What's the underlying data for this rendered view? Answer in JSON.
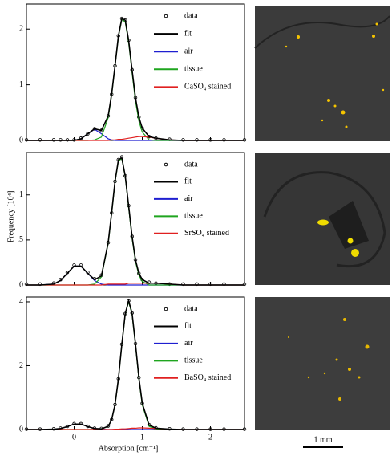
{
  "figure": {
    "y_label": "Frequency [10⁴]",
    "x_label": "Absorption [cm⁻¹]",
    "scale_bar": "1 mm"
  },
  "chart_data": [
    {
      "type": "line",
      "x": [
        -0.7,
        -0.5,
        -0.3,
        -0.2,
        -0.1,
        0,
        0.1,
        0.2,
        0.3,
        0.4,
        0.5,
        0.55,
        0.6,
        0.65,
        0.7,
        0.75,
        0.8,
        0.85,
        0.9,
        0.95,
        1.0,
        1.1,
        1.2,
        1.4,
        1.6,
        1.8,
        2.0,
        2.2,
        2.5
      ],
      "xlim": [
        -0.7,
        2.5
      ],
      "ylim": [
        0,
        2.45
      ],
      "yticks": [
        0,
        1,
        2
      ],
      "series": [
        {
          "name": "data",
          "color": "#000000",
          "marker": "circle",
          "values": [
            0.01,
            0.01,
            0.01,
            0.01,
            0.01,
            0.01,
            0.04,
            0.12,
            0.21,
            0.18,
            0.44,
            0.83,
            1.34,
            1.88,
            2.19,
            2.16,
            1.8,
            1.27,
            0.77,
            0.42,
            0.22,
            0.07,
            0.04,
            0.02,
            0.01,
            0.01,
            0.01,
            0.01,
            0.01
          ]
        },
        {
          "name": "fit",
          "color": "#000000",
          "values": [
            0,
            0,
            0,
            0,
            0,
            0,
            0.03,
            0.12,
            0.21,
            0.18,
            0.44,
            0.83,
            1.34,
            1.88,
            2.19,
            2.16,
            1.8,
            1.27,
            0.77,
            0.42,
            0.22,
            0.07,
            0.04,
            0.01,
            0,
            0,
            0,
            0,
            0
          ]
        },
        {
          "name": "air",
          "color": "#1f1fd0",
          "values": [
            0,
            0,
            0,
            0,
            0,
            0,
            0.03,
            0.12,
            0.2,
            0.12,
            0.03,
            0.01,
            0,
            0,
            0,
            0,
            0,
            0,
            0,
            0,
            0,
            0,
            0,
            0,
            0,
            0,
            0,
            0,
            0
          ]
        },
        {
          "name": "tissue",
          "color": "#1fa51f",
          "values": [
            0,
            0,
            0,
            0,
            0,
            0,
            0,
            0,
            0.01,
            0.06,
            0.41,
            0.81,
            1.33,
            1.86,
            2.17,
            2.13,
            1.76,
            1.22,
            0.71,
            0.35,
            0.15,
            0.01,
            0,
            0,
            0,
            0,
            0,
            0,
            0
          ]
        },
        {
          "name": "CaSO₄ stained",
          "color": "#e02020",
          "values": [
            0,
            0,
            0,
            0,
            0,
            0,
            0,
            0,
            0,
            0,
            0,
            0.01,
            0.01,
            0.02,
            0.02,
            0.03,
            0.04,
            0.05,
            0.06,
            0.07,
            0.07,
            0.06,
            0.04,
            0.01,
            0,
            0,
            0,
            0,
            0
          ]
        }
      ]
    },
    {
      "type": "line",
      "x": [
        -0.7,
        -0.5,
        -0.3,
        -0.2,
        -0.1,
        0,
        0.1,
        0.2,
        0.3,
        0.4,
        0.5,
        0.55,
        0.6,
        0.65,
        0.7,
        0.75,
        0.8,
        0.85,
        0.9,
        0.95,
        1.0,
        1.1,
        1.2,
        1.4,
        1.6,
        1.8,
        2.0,
        2.2,
        2.5
      ],
      "xlim": [
        -0.7,
        2.5
      ],
      "ylim": [
        0,
        1.47
      ],
      "yticks": [
        0,
        {
          "value": 0.5,
          "label": ".5"
        },
        1
      ],
      "series": [
        {
          "name": "data",
          "color": "#000000",
          "marker": "circle",
          "values": [
            0.01,
            0.01,
            0.02,
            0.06,
            0.14,
            0.22,
            0.22,
            0.14,
            0.07,
            0.11,
            0.47,
            0.8,
            1.15,
            1.39,
            1.42,
            1.21,
            0.88,
            0.54,
            0.28,
            0.13,
            0.06,
            0.03,
            0.02,
            0.01,
            0.01,
            0.01,
            0.01,
            0.01,
            0.01
          ]
        },
        {
          "name": "fit",
          "color": "#000000",
          "values": [
            0,
            0,
            0.01,
            0.05,
            0.13,
            0.21,
            0.21,
            0.13,
            0.06,
            0.1,
            0.47,
            0.8,
            1.15,
            1.39,
            1.41,
            1.21,
            0.88,
            0.54,
            0.28,
            0.13,
            0.06,
            0.02,
            0.02,
            0.01,
            0,
            0,
            0,
            0,
            0
          ]
        },
        {
          "name": "air",
          "color": "#1f1fd0",
          "values": [
            0,
            0,
            0.01,
            0.05,
            0.13,
            0.21,
            0.21,
            0.13,
            0.05,
            0.01,
            0,
            0,
            0,
            0,
            0,
            0,
            0,
            0,
            0,
            0,
            0,
            0,
            0,
            0,
            0,
            0,
            0,
            0,
            0
          ]
        },
        {
          "name": "tissue",
          "color": "#1fa51f",
          "values": [
            0,
            0,
            0,
            0,
            0,
            0,
            0,
            0,
            0.01,
            0.09,
            0.46,
            0.79,
            1.14,
            1.38,
            1.4,
            1.2,
            0.86,
            0.52,
            0.26,
            0.11,
            0.04,
            0,
            0,
            0,
            0,
            0,
            0,
            0,
            0
          ]
        },
        {
          "name": "SrSO₄ stained",
          "color": "#e02020",
          "values": [
            0,
            0,
            0,
            0,
            0,
            0,
            0,
            0,
            0,
            0,
            0.01,
            0.01,
            0.01,
            0.01,
            0.01,
            0.01,
            0.02,
            0.02,
            0.02,
            0.02,
            0.02,
            0.02,
            0.02,
            0.01,
            0,
            0,
            0,
            0,
            0
          ]
        }
      ]
    },
    {
      "type": "line",
      "x": [
        -0.7,
        -0.5,
        -0.3,
        -0.2,
        -0.1,
        0,
        0.1,
        0.2,
        0.3,
        0.4,
        0.5,
        0.55,
        0.6,
        0.65,
        0.7,
        0.75,
        0.8,
        0.85,
        0.9,
        0.95,
        1.0,
        1.1,
        1.2,
        1.4,
        1.6,
        1.8,
        2.0,
        2.2,
        2.5
      ],
      "xlim": [
        -0.7,
        2.5
      ],
      "ylim": [
        0,
        4.15
      ],
      "xticks": [
        0,
        1,
        2
      ],
      "yticks": [
        0,
        2,
        4
      ],
      "series": [
        {
          "name": "data",
          "color": "#000000",
          "marker": "circle",
          "values": [
            0.01,
            0.01,
            0.02,
            0.04,
            0.1,
            0.18,
            0.18,
            0.1,
            0.04,
            0.03,
            0.11,
            0.31,
            0.78,
            1.59,
            2.67,
            3.63,
            4.03,
            3.65,
            2.69,
            1.63,
            0.82,
            0.15,
            0.05,
            0.02,
            0.01,
            0.01,
            0.01,
            0.01,
            0.01
          ]
        },
        {
          "name": "fit",
          "color": "#000000",
          "values": [
            0,
            0,
            0.01,
            0.03,
            0.09,
            0.17,
            0.17,
            0.09,
            0.03,
            0.02,
            0.1,
            0.3,
            0.78,
            1.59,
            2.67,
            3.63,
            4.03,
            3.65,
            2.69,
            1.63,
            0.82,
            0.14,
            0.04,
            0.01,
            0,
            0,
            0,
            0,
            0
          ]
        },
        {
          "name": "air",
          "color": "#1f1fd0",
          "values": [
            0,
            0,
            0.01,
            0.03,
            0.09,
            0.17,
            0.17,
            0.09,
            0.03,
            0.01,
            0,
            0,
            0,
            0,
            0,
            0,
            0,
            0,
            0,
            0,
            0,
            0,
            0,
            0,
            0,
            0,
            0,
            0,
            0
          ]
        },
        {
          "name": "tissue",
          "color": "#1fa51f",
          "values": [
            0,
            0,
            0,
            0,
            0,
            0,
            0,
            0,
            0,
            0.01,
            0.1,
            0.3,
            0.77,
            1.58,
            2.65,
            3.61,
            4.0,
            3.61,
            2.65,
            1.58,
            0.77,
            0.1,
            0.01,
            0,
            0,
            0,
            0,
            0,
            0
          ]
        },
        {
          "name": "BaSO₄ stained",
          "color": "#e02020",
          "values": [
            0,
            0,
            0,
            0,
            0,
            0,
            0,
            0,
            0,
            0,
            0,
            0,
            0.01,
            0.01,
            0.02,
            0.02,
            0.03,
            0.04,
            0.04,
            0.05,
            0.05,
            0.04,
            0.03,
            0.01,
            0,
            0,
            0,
            0,
            0
          ]
        }
      ]
    }
  ]
}
